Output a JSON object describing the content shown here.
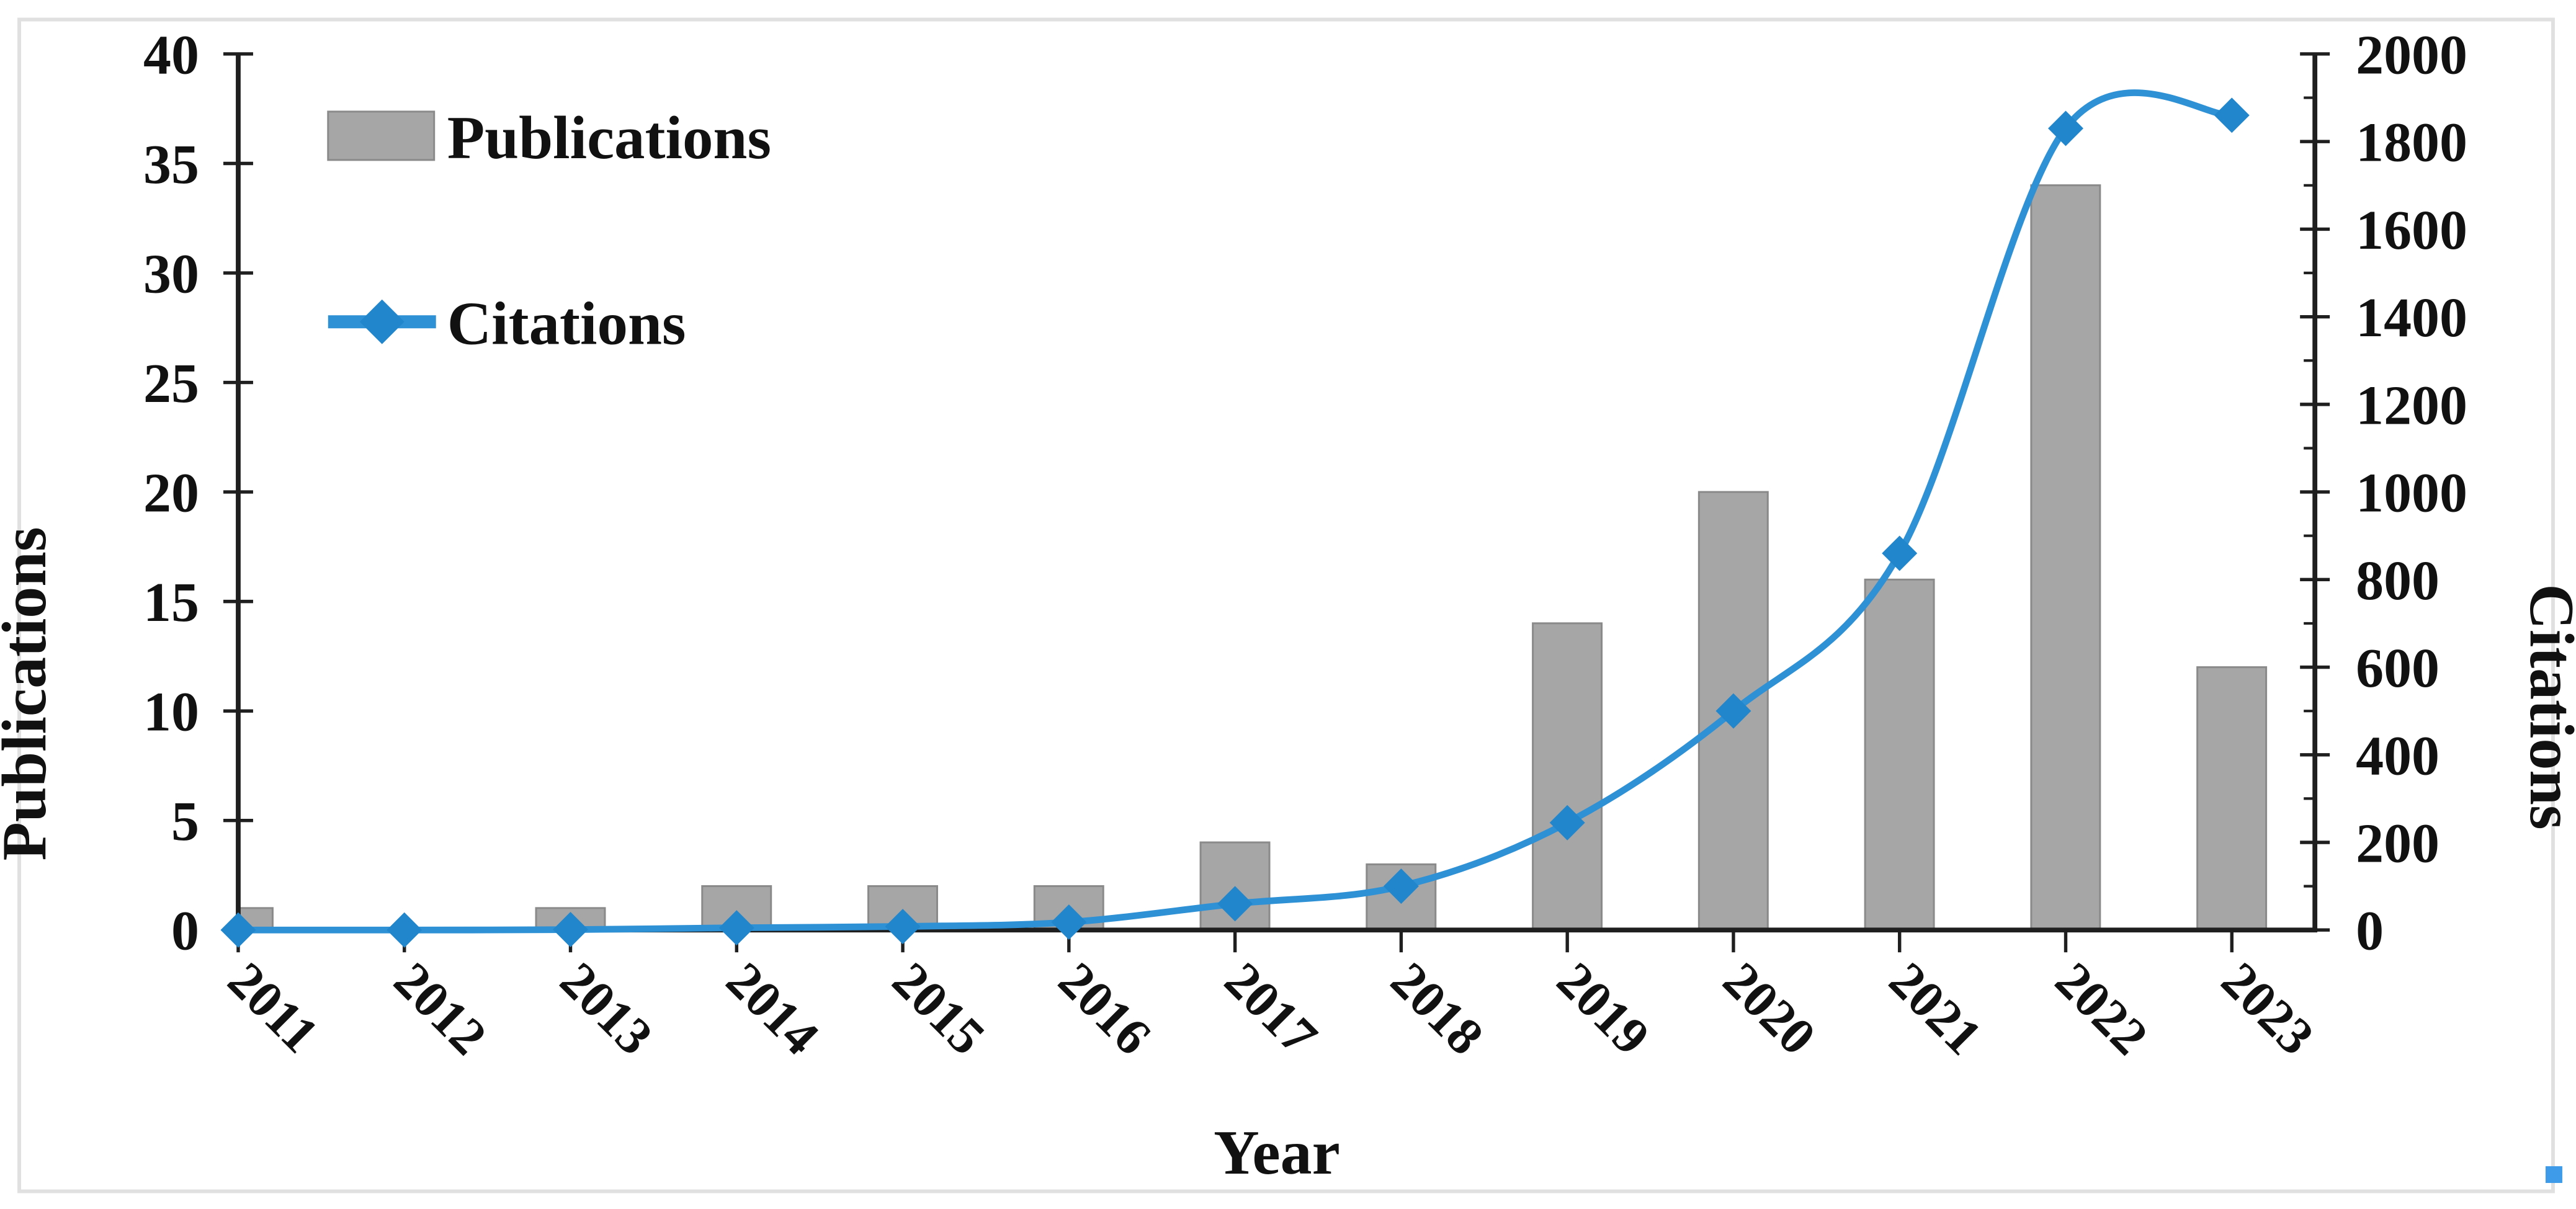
{
  "window": {
    "background_color": "#ffffff",
    "frame_border_color": "#e0e0e0",
    "selection_handle_color": "#3e9be9"
  },
  "chart_data": {
    "type": "bar+line dual-axis",
    "title": "",
    "categories": [
      "2011",
      "2012",
      "2013",
      "2014",
      "2015",
      "2016",
      "2017",
      "2018",
      "2019",
      "2020",
      "2021",
      "2022",
      "2023"
    ],
    "series": [
      {
        "name": "Publications",
        "type": "bar",
        "axis": "left",
        "color": "#a6a6a6",
        "border_color": "#8a8a8a",
        "values": [
          1,
          0,
          1,
          2,
          2,
          2,
          4,
          3,
          14,
          20,
          16,
          34,
          12
        ]
      },
      {
        "name": "Citations",
        "type": "line",
        "axis": "right",
        "color": "#2e90d5",
        "marker": "diamond",
        "marker_color": "#2286cc",
        "values": [
          0,
          0,
          1,
          5,
          8,
          18,
          60,
          100,
          245,
          500,
          860,
          1830,
          1860
        ]
      }
    ],
    "xlabel": "Year",
    "left_axis": {
      "label": "Publications",
      "min": 0,
      "max": 40,
      "tick_step": 5,
      "ticks": [
        0,
        5,
        10,
        15,
        20,
        25,
        30,
        35,
        40
      ]
    },
    "right_axis": {
      "label": "Citations",
      "min": 0,
      "max": 2000,
      "tick_step": 200,
      "minor_tick_step": 100,
      "ticks": [
        0,
        200,
        400,
        600,
        800,
        1000,
        1200,
        1400,
        1600,
        1800,
        2000
      ]
    },
    "axis_color": "#1f1f1f",
    "legend": {
      "position": "top-left",
      "entries": [
        "Publications",
        "Citations"
      ]
    },
    "grid": false
  }
}
